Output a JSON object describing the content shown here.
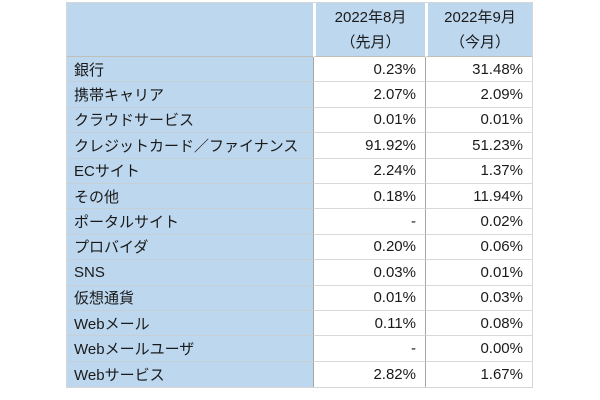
{
  "chart_data": {
    "type": "table",
    "title": "",
    "categories": [
      "銀行",
      "携帯キャリア",
      "クラウドサービス",
      "クレジットカード／ファイナンス",
      "ECサイト",
      "その他",
      "ポータルサイト",
      "プロバイダ",
      "SNS",
      "仮想通貨",
      "Webメール",
      "Webメールユーザ",
      "Webサービス"
    ],
    "series": [
      {
        "name": "2022年8月（先月）",
        "values": [
          "0.23%",
          "2.07%",
          "0.01%",
          "91.92%",
          "2.24%",
          "0.18%",
          "-",
          "0.20%",
          "0.03%",
          "0.01%",
          "0.11%",
          "-",
          "2.82%"
        ]
      },
      {
        "name": "2022年9月（今月）",
        "values": [
          "31.48%",
          "2.09%",
          "0.01%",
          "51.23%",
          "1.37%",
          "11.94%",
          "0.02%",
          "0.06%",
          "0.01%",
          "0.03%",
          "0.08%",
          "0.00%",
          "1.67%"
        ]
      }
    ],
    "layout": {
      "header_position": "top",
      "label_column_position": "left",
      "grid": true
    }
  },
  "table": {
    "header": {
      "prev": {
        "title": "2022年8月",
        "subtitle": "（先月）"
      },
      "curr": {
        "title": "2022年9月",
        "subtitle": "（今月）"
      }
    },
    "rows": [
      {
        "label": "銀行",
        "prev": "0.23%",
        "curr": "31.48%"
      },
      {
        "label": "携帯キャリア",
        "prev": "2.07%",
        "curr": "2.09%"
      },
      {
        "label": "クラウドサービス",
        "prev": "0.01%",
        "curr": "0.01%"
      },
      {
        "label": "クレジットカード／ファイナンス",
        "prev": "91.92%",
        "curr": "51.23%"
      },
      {
        "label": "ECサイト",
        "prev": "2.24%",
        "curr": "1.37%"
      },
      {
        "label": "その他",
        "prev": "0.18%",
        "curr": "11.94%"
      },
      {
        "label": "ポータルサイト",
        "prev": "-",
        "curr": "0.02%"
      },
      {
        "label": "プロバイダ",
        "prev": "0.20%",
        "curr": "0.06%"
      },
      {
        "label": "SNS",
        "prev": "0.03%",
        "curr": "0.01%"
      },
      {
        "label": "仮想通貨",
        "prev": "0.01%",
        "curr": "0.03%"
      },
      {
        "label": "Webメール",
        "prev": "0.11%",
        "curr": "0.08%"
      },
      {
        "label": "Webメールユーザ",
        "prev": "-",
        "curr": "0.00%"
      },
      {
        "label": "Webサービス",
        "prev": "2.82%",
        "curr": "1.67%"
      }
    ]
  },
  "colors": {
    "header_bg": "#BDD7EE",
    "label_bg": "#BDD7EE",
    "value_bg": "#FFFFFF",
    "grid_vertical": "#A6A6A6",
    "grid_horizontal": "#D9D9D9",
    "text": "#1A1A1A",
    "page_bg": "#FFFFFF"
  }
}
